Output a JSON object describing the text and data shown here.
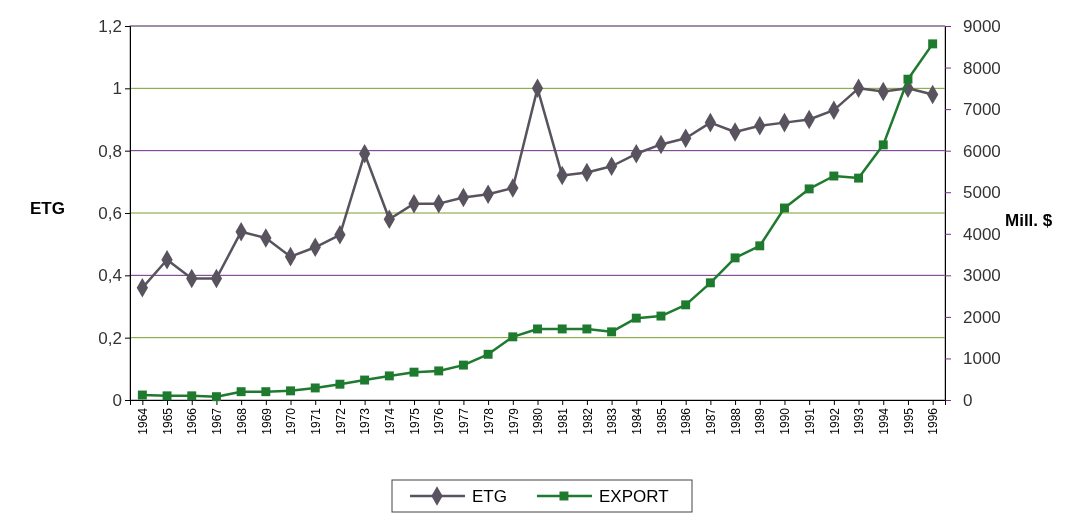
{
  "chart_data": {
    "type": "line",
    "ylabel": "ETG",
    "y2label": "Mill. $",
    "categories": [
      "1964",
      "1965",
      "1966",
      "1967",
      "1968",
      "1969",
      "1970",
      "1971",
      "1972",
      "1973",
      "1974",
      "1975",
      "1976",
      "1977",
      "1978",
      "1979",
      "1980",
      "1981",
      "1982",
      "1983",
      "1984",
      "1985",
      "1986",
      "1987",
      "1988",
      "1989",
      "1990",
      "1991",
      "1992",
      "1993",
      "1994",
      "1995",
      "1996"
    ],
    "series": [
      {
        "name": "ETG",
        "color": "#58535e",
        "marker": "diamond",
        "values": [
          0.36,
          0.45,
          0.39,
          0.39,
          0.54,
          0.52,
          0.46,
          0.49,
          0.53,
          0.79,
          0.58,
          0.63,
          0.63,
          0.65,
          0.66,
          0.68,
          1.0,
          0.72,
          0.73,
          0.75,
          0.79,
          0.82,
          0.84,
          0.89,
          0.86,
          0.88,
          0.89,
          0.9,
          0.93,
          1.0,
          0.99,
          1.0,
          0.98
        ]
      },
      {
        "name": "EXPORT",
        "color": "#1e7a2e",
        "marker": "square",
        "axis": "y2",
        "values": [
          120,
          100,
          100,
          80,
          200,
          200,
          220,
          290,
          380,
          480,
          580,
          670,
          700,
          840,
          1100,
          1520,
          1710,
          1710,
          1710,
          1640,
          1970,
          2020,
          2290,
          2820,
          3420,
          3710,
          4620,
          5080,
          5390,
          5340,
          6140,
          7720,
          8570
        ]
      }
    ],
    "ylim": [
      0,
      1.2
    ],
    "yticks": [
      0,
      {
        "value": 0.2,
        "label": "0,2"
      },
      {
        "value": 0.4,
        "label": "0,4"
      },
      {
        "value": 0.6,
        "label": "0,6"
      },
      {
        "value": 0.8,
        "label": "0,8"
      },
      1,
      {
        "value": 1.2,
        "label": "1,2"
      }
    ],
    "y2lim": [
      0,
      9000
    ],
    "y2ticks": [
      0,
      1000,
      2000,
      3000,
      4000,
      5000,
      6000,
      7000,
      8000,
      9000
    ],
    "grid": "y",
    "legend": "bottom",
    "line_style": "solid"
  }
}
